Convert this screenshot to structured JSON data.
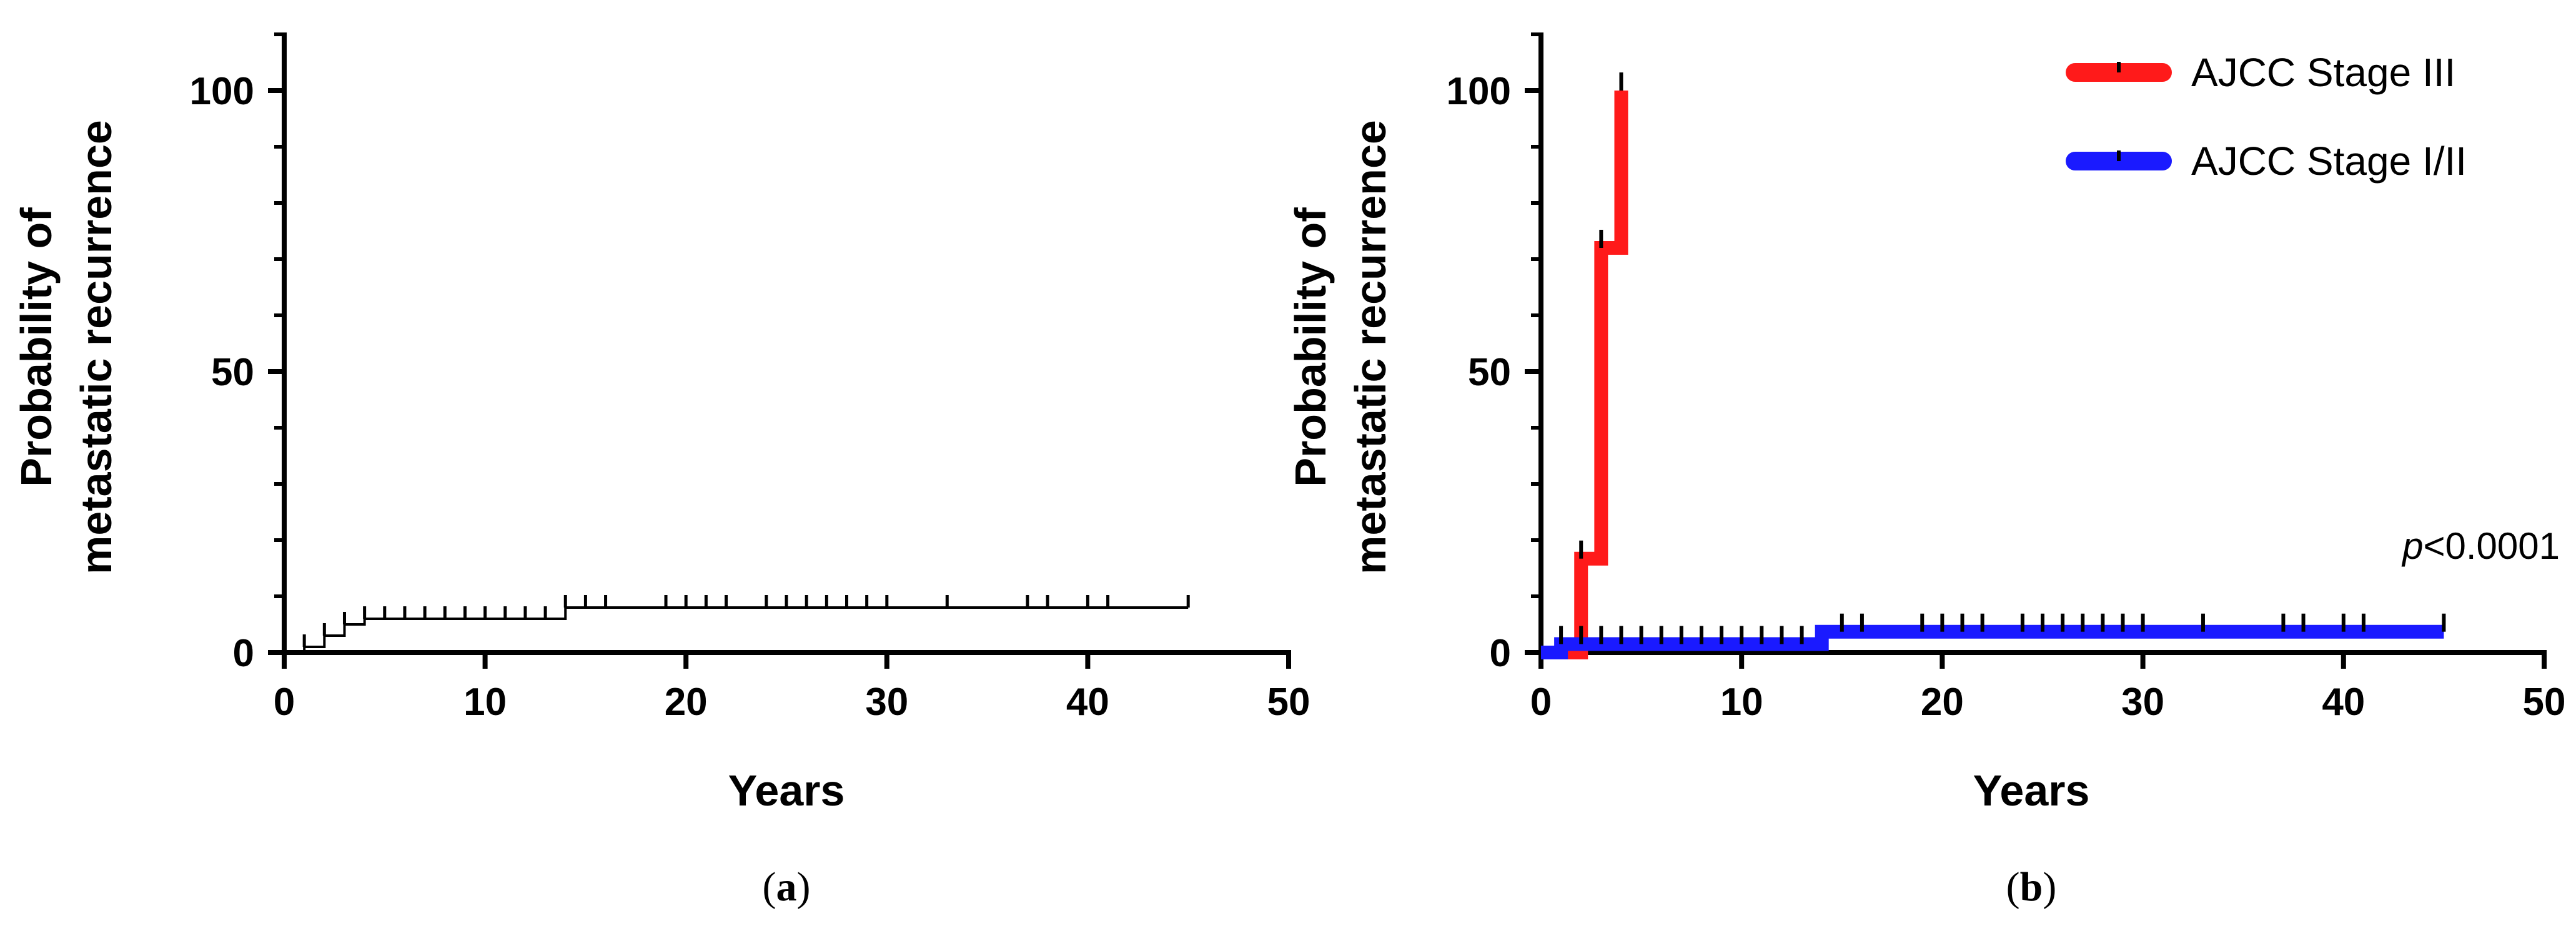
{
  "chart_data": [
    {
      "type": "line",
      "panel_label_prefix": "(",
      "panel_letter": "a",
      "panel_label_suffix": ")",
      "xlabel": "Years",
      "ylabel_line1": "Probability of",
      "ylabel_line2": "metastatic recurrence",
      "xlim": [
        0,
        50
      ],
      "ylim": [
        0,
        100
      ],
      "xticks": [
        0,
        10,
        20,
        30,
        40,
        50
      ],
      "yticks": [
        0,
        50,
        100
      ],
      "grid": false,
      "series": [
        {
          "color": "#000000",
          "step_x": [
            0,
            1,
            2,
            3,
            4,
            14,
            45
          ],
          "step_y": [
            0,
            1,
            3,
            5,
            6,
            8,
            8
          ],
          "censor_x": [
            1,
            2,
            3,
            4,
            5,
            6,
            7,
            8,
            9,
            10,
            11,
            12,
            13,
            14,
            15,
            16,
            19,
            20,
            21,
            22,
            24,
            25,
            26,
            27,
            28,
            29,
            30,
            33,
            37,
            38,
            40,
            41,
            45
          ]
        }
      ]
    },
    {
      "type": "line",
      "panel_label_prefix": "(",
      "panel_letter": "b",
      "panel_label_suffix": ")",
      "xlabel": "Years",
      "ylabel_line1": "Probability of",
      "ylabel_line2": "metastatic recurrence",
      "xlim": [
        0,
        50
      ],
      "ylim": [
        0,
        100
      ],
      "xticks": [
        0,
        10,
        20,
        30,
        40,
        50
      ],
      "yticks": [
        0,
        50,
        100
      ],
      "grid": false,
      "legend_position": "top-right",
      "annotation_italic": "p",
      "annotation_rest": "<0.0001",
      "series": [
        {
          "name": "AJCC Stage III",
          "color": "#ff1a1a",
          "step_x": [
            0,
            2,
            3,
            4,
            4
          ],
          "step_y": [
            0,
            16.7,
            72,
            100,
            100
          ],
          "censor_x": [
            2,
            3,
            4
          ]
        },
        {
          "name": "AJCC Stage I/II",
          "color": "#1a1aff",
          "step_x": [
            0,
            1,
            14,
            45
          ],
          "step_y": [
            0,
            1.5,
            3.7,
            3.7
          ],
          "censor_x": [
            1,
            2,
            3,
            4,
            5,
            6,
            7,
            8,
            9,
            10,
            11,
            12,
            13,
            15,
            16,
            19,
            20,
            21,
            22,
            24,
            25,
            26,
            27,
            28,
            29,
            30,
            33,
            37,
            38,
            40,
            41,
            45
          ]
        }
      ]
    }
  ]
}
